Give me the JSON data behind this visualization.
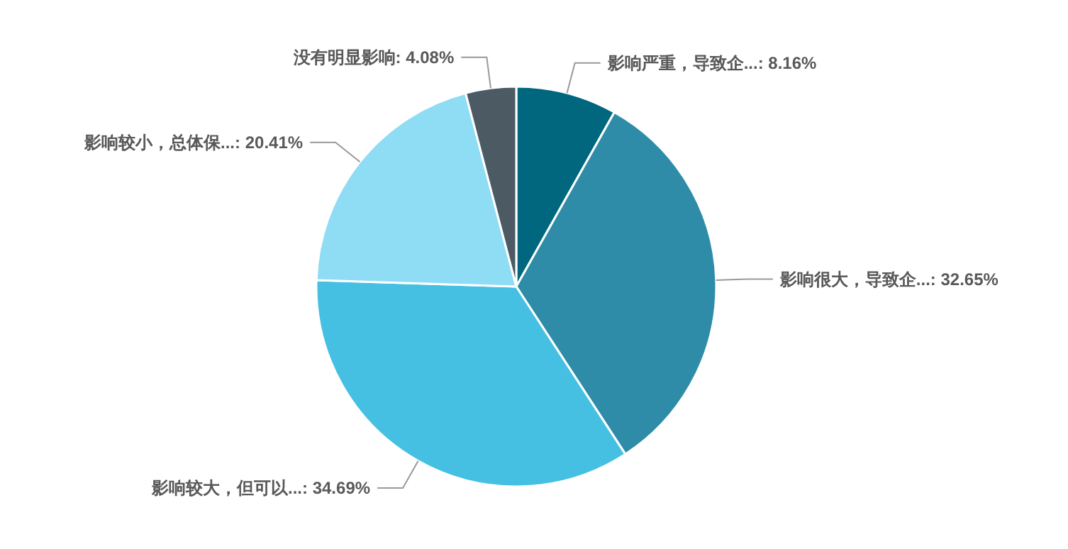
{
  "chart_data": {
    "type": "pie",
    "categories": [
      "影响严重，导致企...",
      "影响很大，导致企...",
      "影响较大，但可以...",
      "影响较小，总体保...",
      "没有明显影响"
    ],
    "values": [
      8.16,
      32.65,
      34.69,
      20.41,
      4.08
    ],
    "value_labels": [
      "8.16%",
      "32.65%",
      "34.69%",
      "20.41%",
      "4.08%"
    ],
    "colors": [
      "#00677f",
      "#2e8ca8",
      "#45c0e2",
      "#8fdcf5",
      "#4b5a63"
    ]
  }
}
